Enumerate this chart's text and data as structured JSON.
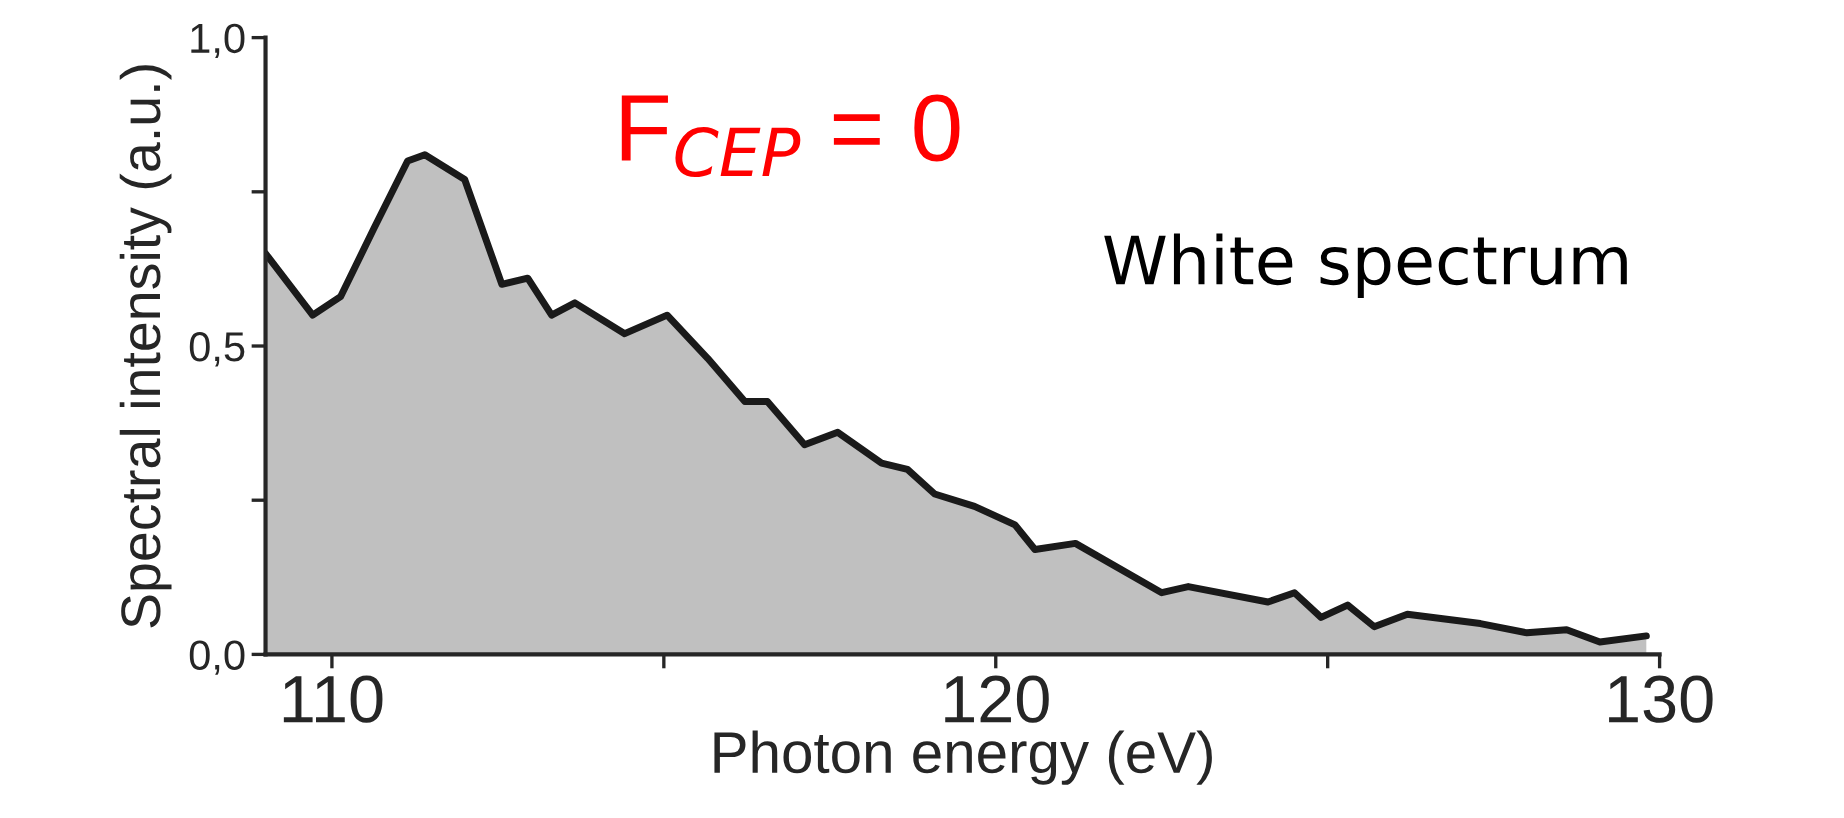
{
  "chart_data": {
    "type": "area",
    "xlabel": "Photon energy (eV)",
    "ylabel": "Spectral intensity (a.u.)",
    "annotations": [
      "F$_{CEP}$ = 0",
      "White spectrum"
    ],
    "series": [
      {
        "color": "#c0c0c0",
        "x": [
          109.0,
          109.71,
          110.13,
          110.63,
          111.14,
          111.4,
          112.0,
          112.56,
          112.95,
          113.31,
          113.66,
          114.41,
          115.05,
          115.66,
          116.22,
          116.56,
          117.12,
          117.62,
          118.28,
          118.67,
          119.08,
          119.68,
          120.29,
          120.59,
          121.2,
          122.5,
          122.9,
          124.1,
          124.5,
          124.9,
          125.3,
          125.7,
          126.2,
          127.3,
          128.0,
          128.6,
          129.1,
          129.8
        ],
        "values": [
          0.65,
          0.55,
          0.58,
          0.69,
          0.8,
          0.81,
          0.77,
          0.6,
          0.61,
          0.55,
          0.57,
          0.52,
          0.55,
          0.48,
          0.41,
          0.41,
          0.34,
          0.36,
          0.31,
          0.3,
          0.26,
          0.24,
          0.21,
          0.17,
          0.18,
          0.1,
          0.11,
          0.085,
          0.1,
          0.06,
          0.08,
          0.045,
          0.065,
          0.05,
          0.035,
          0.04,
          0.02,
          0.03
        ]
      }
    ],
    "xlim": [
      109,
      130
    ],
    "xticks": [
      110,
      {
        "value": 115,
        "label": null
      },
      120,
      {
        "value": 125,
        "label": null
      },
      130
    ],
    "ylim": [
      0,
      1.0
    ],
    "yticks": [
      {
        "value": 0,
        "label": "0,0"
      },
      {
        "value": 0.25,
        "label": null
      },
      {
        "value": 0.5,
        "label": "0,5"
      },
      {
        "value": 0.75,
        "label": null
      },
      {
        "value": 1.0,
        "label": "1,0"
      }
    ],
    "grid": false,
    "legend": false
  }
}
